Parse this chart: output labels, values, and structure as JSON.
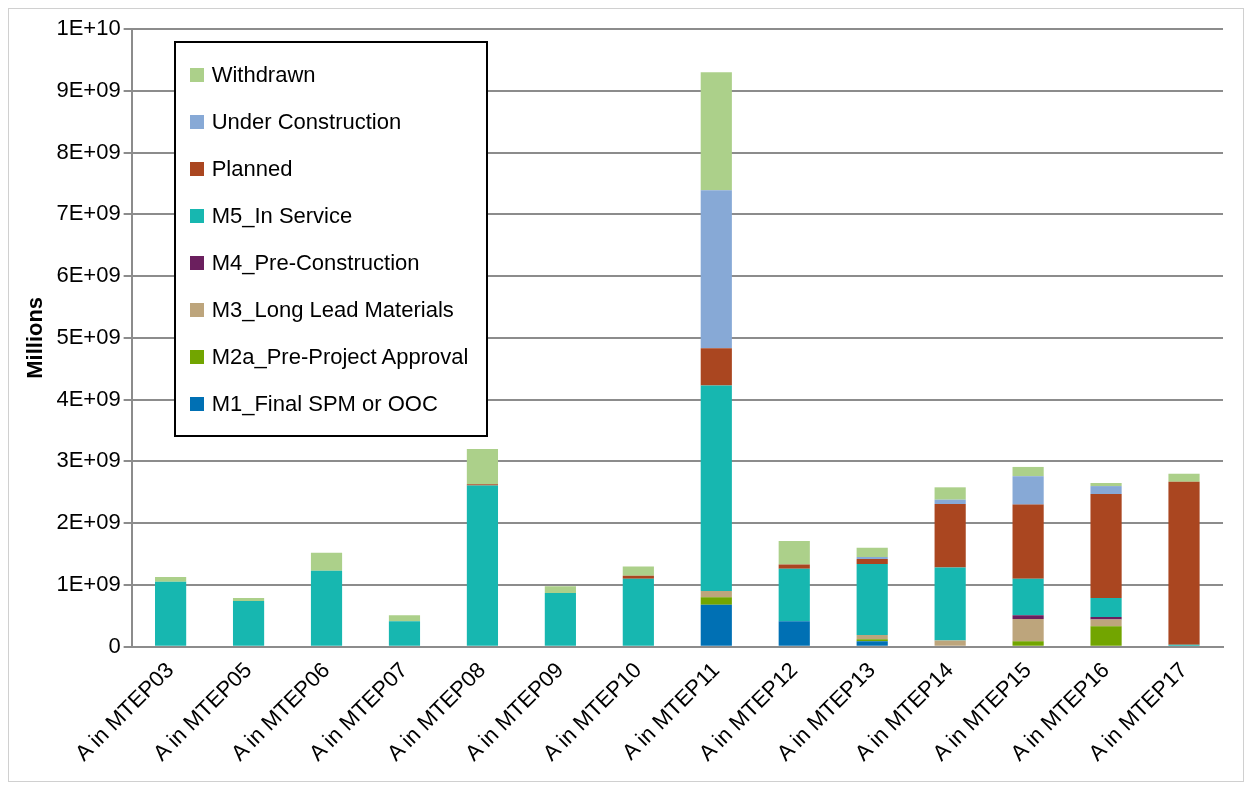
{
  "chart_data": {
    "type": "bar",
    "stacked": true,
    "ylabel": "Millions",
    "grid": "y",
    "legend": "top left",
    "categories": [
      "A in MTEP03",
      "A in MTEP05",
      "A in MTEP06",
      "A in MTEP07",
      "A in MTEP08",
      "A in MTEP09",
      "A in MTEP10",
      "A in MTEP11",
      "A in MTEP12",
      "A in MTEP13",
      "A in MTEP14",
      "A in MTEP15",
      "A in MTEP16",
      "A in MTEP17"
    ],
    "ylim": [
      0,
      10000000000
    ],
    "yticks": [
      0,
      {
        "value": 1000000000,
        "label": "1E+09"
      },
      {
        "value": 2000000000,
        "label": "2E+09"
      },
      {
        "value": 3000000000,
        "label": "3E+09"
      },
      {
        "value": 4000000000,
        "label": "4E+09"
      },
      {
        "value": 5000000000,
        "label": "5E+09"
      },
      {
        "value": 6000000000,
        "label": "6E+09"
      },
      {
        "value": 7000000000,
        "label": "7E+09"
      },
      {
        "value": 8000000000,
        "label": "8E+09"
      },
      {
        "value": 9000000000,
        "label": "9E+09"
      },
      {
        "value": 10000000000,
        "label": "1E+10"
      }
    ],
    "series": [
      {
        "name": "M1_Final SPM or OOC",
        "color": "#0070b4",
        "values": [
          0,
          0,
          0,
          0,
          0,
          0,
          0,
          680000000,
          410000000,
          90000000,
          0,
          0,
          0,
          0
        ]
      },
      {
        "name": "M2a_Pre-Project Approval",
        "color": "#72a500",
        "values": [
          0,
          0,
          0,
          0,
          0,
          0,
          0,
          120000000,
          0,
          30000000,
          0,
          90000000,
          330000000,
          0
        ]
      },
      {
        "name": "M3_Long Lead Materials",
        "color": "#bda57c",
        "values": [
          0,
          0,
          0,
          0,
          0,
          0,
          0,
          100000000,
          0,
          70000000,
          100000000,
          360000000,
          110000000,
          0
        ]
      },
      {
        "name": "M4_Pre-Construction",
        "color": "#6b1f5e",
        "values": [
          0,
          0,
          0,
          0,
          0,
          0,
          0,
          0,
          0,
          0,
          0,
          60000000,
          40000000,
          0
        ]
      },
      {
        "name": "M5_In Service",
        "color": "#17b7b0",
        "values": [
          1050000000,
          740000000,
          1230000000,
          410000000,
          2610000000,
          870000000,
          1100000000,
          3330000000,
          850000000,
          1150000000,
          1180000000,
          590000000,
          310000000,
          30000000
        ]
      },
      {
        "name": "Planned",
        "color": "#aa4620",
        "values": [
          0,
          0,
          0,
          0,
          20000000,
          0,
          50000000,
          600000000,
          70000000,
          80000000,
          1030000000,
          1200000000,
          1680000000,
          2640000000
        ]
      },
      {
        "name": "Under Construction",
        "color": "#87a9d6",
        "values": [
          0,
          0,
          0,
          0,
          0,
          0,
          0,
          2560000000,
          0,
          30000000,
          70000000,
          460000000,
          130000000,
          0
        ]
      },
      {
        "name": "Withdrawn",
        "color": "#acd08a",
        "values": [
          80000000,
          50000000,
          290000000,
          100000000,
          570000000,
          110000000,
          150000000,
          1910000000,
          380000000,
          150000000,
          200000000,
          150000000,
          50000000,
          130000000
        ]
      }
    ]
  }
}
